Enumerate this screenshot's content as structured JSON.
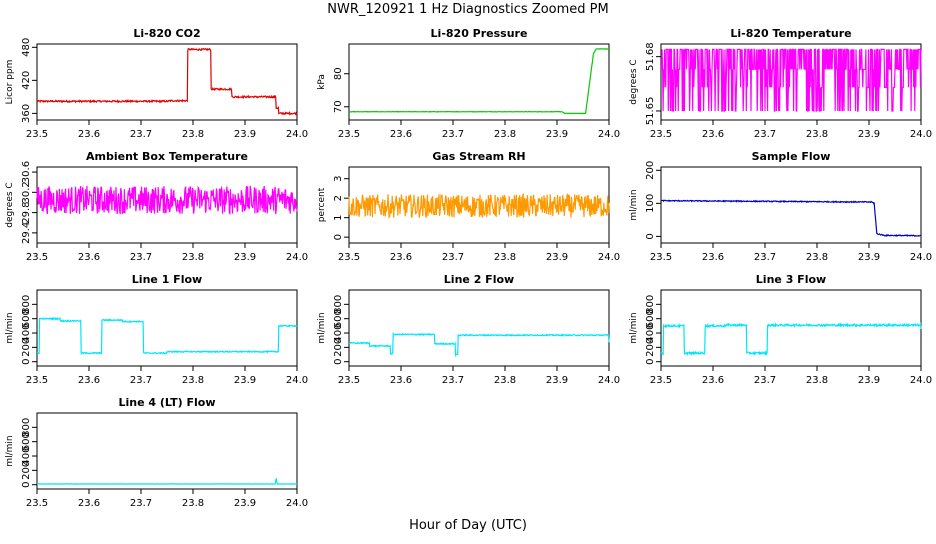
{
  "page": {
    "title": "NWR_120921  1 Hz Diagnostics Zoomed PM",
    "x_caption": "Hour of Day (UTC)"
  },
  "chart_data": [
    {
      "id": "co2",
      "type": "line",
      "title": "Li-820 CO2",
      "xlabel": "",
      "ylabel": "Licor ppm",
      "color": "#e00000",
      "xlim": [
        23.5,
        24.0
      ],
      "ylim": [
        348,
        486
      ],
      "xticks": [
        "23.5",
        "23.6",
        "23.7",
        "23.8",
        "23.9",
        "24.0"
      ],
      "yticks": [
        {
          "v": 360,
          "label": "360"
        },
        {
          "v": 420,
          "label": "420"
        },
        {
          "v": 480,
          "label": "480"
        }
      ],
      "series": [
        {
          "mode": "step",
          "x": [
            23.5,
            23.755,
            23.79,
            23.835,
            23.875,
            23.96,
            23.965,
            24.0
          ],
          "y": [
            382,
            383,
            476,
            404,
            390,
            370,
            360,
            360
          ]
        }
      ],
      "noise": 1.5
    },
    {
      "id": "pressure",
      "type": "line",
      "title": "Li-820 Pressure",
      "xlabel": "",
      "ylabel": "kPa",
      "color": "#00cc00",
      "xlim": [
        23.5,
        24.0
      ],
      "ylim": [
        66,
        89
      ],
      "xticks": [
        "23.5",
        "23.6",
        "23.7",
        "23.8",
        "23.9",
        "24.0"
      ],
      "yticks": [
        {
          "v": 70,
          "label": "70"
        },
        {
          "v": 80,
          "label": "80"
        }
      ],
      "series": [
        {
          "mode": "linear",
          "x": [
            23.5,
            23.91,
            23.915,
            23.955,
            23.97,
            23.975,
            24.0
          ],
          "y": [
            68.5,
            68.5,
            68.0,
            68.0,
            86.0,
            87.5,
            87.5
          ]
        }
      ],
      "noise": 0.05
    },
    {
      "id": "temperature",
      "type": "line",
      "title": "Li-820 Temperature",
      "xlabel": "",
      "ylabel": "degrees C",
      "color": "#ff00ff",
      "xlim": [
        23.5,
        24.0
      ],
      "ylim": [
        51.645,
        51.687
      ],
      "xticks": [
        "23.5",
        "23.6",
        "23.7",
        "23.8",
        "23.9",
        "24.0"
      ],
      "yticks": [
        {
          "v": 51.65,
          "label": "51.65"
        },
        {
          "v": 51.68,
          "label": "51.68"
        }
      ],
      "series": [
        {
          "mode": "flip",
          "levels": [
            51.65,
            51.663,
            51.673,
            51.684
          ],
          "x": [
            23.5,
            24.0
          ],
          "y": [
            51.673,
            51.673
          ]
        }
      ],
      "noise": 0
    },
    {
      "id": "ambient",
      "type": "line",
      "title": "Ambient Box Temperature",
      "xlabel": "",
      "ylabel": "degrees C",
      "color": "#ff00ff",
      "xlim": [
        23.5,
        24.0
      ],
      "ylim": [
        29.2,
        30.7
      ],
      "xticks": [
        "23.5",
        "23.6",
        "23.7",
        "23.8",
        "23.9",
        "24.0"
      ],
      "yticks": [
        {
          "v": 29.4,
          "label": "29.4"
        },
        {
          "v": 29.8,
          "label": "29.8"
        },
        {
          "v": 30.2,
          "label": "30.2"
        },
        {
          "v": 30.6,
          "label": "30.6"
        }
      ],
      "series": [
        {
          "mode": "linear",
          "x": [
            23.5,
            24.0
          ],
          "y": [
            30.05,
            30.05
          ]
        }
      ],
      "noise": 0.28
    },
    {
      "id": "rh",
      "type": "line",
      "title": "Gas Stream RH",
      "xlabel": "",
      "ylabel": "percent",
      "color": "#ff9900",
      "xlim": [
        23.5,
        24.0
      ],
      "ylim": [
        -0.3,
        3.6
      ],
      "xticks": [
        "23.5",
        "23.6",
        "23.7",
        "23.8",
        "23.9",
        "24.0"
      ],
      "yticks": [
        {
          "v": 0,
          "label": "0"
        },
        {
          "v": 1,
          "label": "1"
        },
        {
          "v": 2,
          "label": "2"
        },
        {
          "v": 3,
          "label": "3"
        }
      ],
      "series": [
        {
          "mode": "linear",
          "x": [
            23.5,
            24.0
          ],
          "y": [
            1.6,
            1.6
          ]
        }
      ],
      "noise": 0.6
    },
    {
      "id": "sample",
      "type": "line",
      "title": "Sample Flow",
      "xlabel": "",
      "ylabel": "ml/min",
      "color": "#0000cc",
      "xlim": [
        23.5,
        24.0
      ],
      "ylim": [
        -20,
        210
      ],
      "xticks": [
        "23.5",
        "23.6",
        "23.7",
        "23.8",
        "23.9",
        "24.0"
      ],
      "yticks": [
        {
          "v": 0,
          "label": "0"
        },
        {
          "v": 100,
          "label": "100"
        },
        {
          "v": 200,
          "label": "200"
        }
      ],
      "series": [
        {
          "mode": "linear",
          "x": [
            23.5,
            23.905,
            23.91,
            23.915,
            23.93,
            24.0
          ],
          "y": [
            108,
            104,
            100,
            8,
            3,
            2
          ]
        }
      ],
      "noise": 1.5
    },
    {
      "id": "line1",
      "type": "line",
      "title": "Line 1 Flow",
      "xlabel": "",
      "ylabel": "ml/min",
      "color": "#00e5ff",
      "xlim": [
        23.5,
        24.0
      ],
      "ylim": [
        -60,
        1000
      ],
      "xticks": [
        "23.5",
        "23.6",
        "23.7",
        "23.8",
        "23.9",
        "24.0"
      ],
      "yticks": [
        {
          "v": 0,
          "label": "0"
        },
        {
          "v": 200,
          "label": "200"
        },
        {
          "v": 400,
          "label": "400"
        },
        {
          "v": 600,
          "label": "600"
        },
        {
          "v": 800,
          "label": "800"
        }
      ],
      "series": [
        {
          "mode": "step",
          "x": [
            23.5,
            23.505,
            23.545,
            23.585,
            23.625,
            23.665,
            23.705,
            23.75,
            23.955,
            23.965,
            24.0
          ],
          "y": [
            120,
            600,
            570,
            120,
            580,
            560,
            120,
            140,
            140,
            500,
            500
          ]
        }
      ],
      "noise": 8
    },
    {
      "id": "line2",
      "type": "line",
      "title": "Line 2 Flow",
      "xlabel": "",
      "ylabel": "ml/min",
      "color": "#00e5ff",
      "xlim": [
        23.5,
        24.0
      ],
      "ylim": [
        -60,
        1000
      ],
      "xticks": [
        "23.5",
        "23.6",
        "23.7",
        "23.8",
        "23.9",
        "24.0"
      ],
      "yticks": [
        {
          "v": 0,
          "label": "0"
        },
        {
          "v": 200,
          "label": "200"
        },
        {
          "v": 400,
          "label": "400"
        },
        {
          "v": 600,
          "label": "600"
        },
        {
          "v": 800,
          "label": "800"
        }
      ],
      "series": [
        {
          "mode": "step",
          "x": [
            23.5,
            23.54,
            23.58,
            23.585,
            23.665,
            23.705,
            23.71,
            24.0
          ],
          "y": [
            260,
            220,
            110,
            380,
            250,
            100,
            370,
            270
          ]
        }
      ],
      "noise": 8
    },
    {
      "id": "line3",
      "type": "line",
      "title": "Line 3 Flow",
      "xlabel": "",
      "ylabel": "ml/min",
      "color": "#00e5ff",
      "xlim": [
        23.5,
        24.0
      ],
      "ylim": [
        -60,
        1000
      ],
      "xticks": [
        "23.5",
        "23.6",
        "23.7",
        "23.8",
        "23.9",
        "24.0"
      ],
      "yticks": [
        {
          "v": 0,
          "label": "0"
        },
        {
          "v": 200,
          "label": "200"
        },
        {
          "v": 400,
          "label": "400"
        },
        {
          "v": 600,
          "label": "600"
        },
        {
          "v": 800,
          "label": "800"
        }
      ],
      "series": [
        {
          "mode": "step",
          "x": [
            23.5,
            23.505,
            23.545,
            23.585,
            23.625,
            23.665,
            23.705,
            23.92,
            24.0
          ],
          "y": [
            120,
            500,
            120,
            500,
            510,
            120,
            510,
            510,
            460
          ]
        }
      ],
      "noise": 14
    },
    {
      "id": "line4",
      "type": "line",
      "title": "Line 4 (LT) Flow",
      "xlabel": "",
      "ylabel": "ml/min",
      "color": "#00e5ff",
      "xlim": [
        23.5,
        24.0
      ],
      "ylim": [
        -60,
        1000
      ],
      "xticks": [
        "23.5",
        "23.6",
        "23.7",
        "23.8",
        "23.9",
        "24.0"
      ],
      "yticks": [
        {
          "v": 0,
          "label": "0"
        },
        {
          "v": 200,
          "label": "200"
        },
        {
          "v": 400,
          "label": "400"
        },
        {
          "v": 600,
          "label": "600"
        },
        {
          "v": 800,
          "label": "800"
        }
      ],
      "series": [
        {
          "mode": "linear",
          "x": [
            23.5,
            23.958,
            23.96,
            23.962,
            24.0
          ],
          "y": [
            10,
            10,
            90,
            10,
            10
          ]
        }
      ],
      "noise": 2
    }
  ]
}
